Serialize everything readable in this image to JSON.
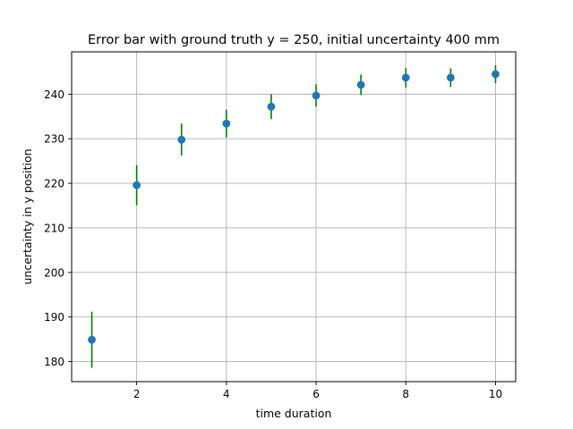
{
  "chart_data": {
    "type": "scatter",
    "title": "Error bar with ground truth y = 250, initial uncertainty 400 mm",
    "xlabel": "time duration",
    "ylabel": "uncertainty in y position",
    "xlim": [
      0.55,
      10.45
    ],
    "ylim": [
      175.5,
      249.5
    ],
    "xticks": [
      2,
      4,
      6,
      8,
      10
    ],
    "yticks": [
      180,
      190,
      200,
      210,
      220,
      230,
      240
    ],
    "grid": true,
    "x": [
      1,
      2,
      3,
      4,
      5,
      6,
      7,
      8,
      9,
      10
    ],
    "y": [
      184.9,
      219.6,
      229.8,
      233.4,
      237.2,
      239.7,
      242.1,
      243.7,
      243.7,
      244.5
    ],
    "yerr": [
      6.3,
      4.5,
      3.6,
      3.1,
      2.8,
      2.5,
      2.3,
      2.2,
      2.1,
      2.0
    ],
    "colors": {
      "marker": "#1f77b4",
      "errorbar": "#008000",
      "grid": "#b0b0b0",
      "axes": "#000000"
    }
  }
}
